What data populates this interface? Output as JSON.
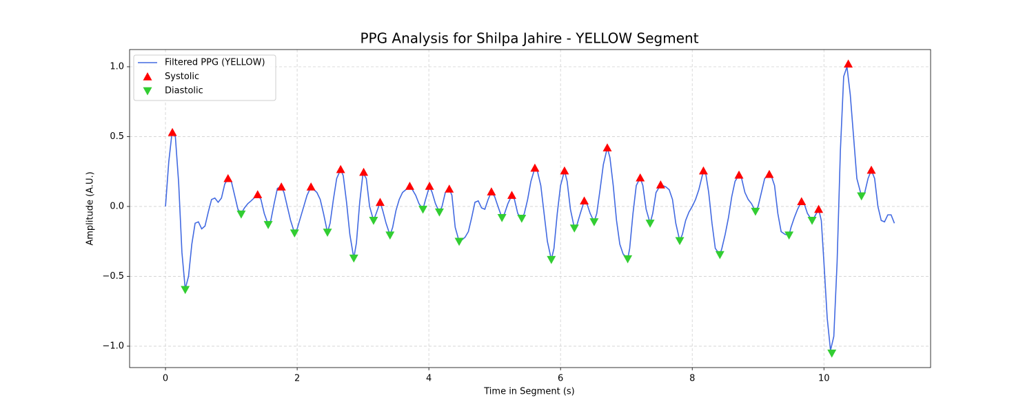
{
  "chart_data": {
    "type": "line",
    "title": "PPG Analysis for Shilpa Jahire - YELLOW Segment",
    "x_label": "Time in Segment (s)",
    "y_label": "Amplitude (A.U.)",
    "xlim": [
      -0.545,
      11.62
    ],
    "ylim": [
      -1.153,
      1.123
    ],
    "xticks": [
      0,
      2,
      4,
      6,
      8,
      10
    ],
    "yticks": [
      {
        "value": -1,
        "label": "−1.0"
      },
      {
        "value": -0.5,
        "label": "−0.5"
      },
      {
        "value": 0,
        "label": "0.0"
      },
      {
        "value": 0.5,
        "label": "0.5"
      },
      {
        "value": 1,
        "label": "1.0"
      }
    ],
    "grid": true,
    "legend": "upper left",
    "series": [
      {
        "name": "Filtered PPG (YELLOW)",
        "color": "#4169e1",
        "kind": "line",
        "x": [
          0,
          0.05,
          0.1,
          0.15,
          0.2,
          0.25,
          0.3,
          0.35,
          0.4,
          0.45,
          0.5,
          0.55,
          0.6,
          0.65,
          0.7,
          0.75,
          0.8,
          0.85,
          0.9,
          0.95,
          1.0,
          1.05,
          1.1,
          1.15,
          1.2,
          1.25,
          1.3,
          1.4,
          1.45,
          1.5,
          1.56,
          1.6,
          1.65,
          1.7,
          1.76,
          1.8,
          1.85,
          1.9,
          1.96,
          2.0,
          2.05,
          2.1,
          2.15,
          2.21,
          2.3,
          2.35,
          2.4,
          2.46,
          2.5,
          2.55,
          2.6,
          2.66,
          2.7,
          2.75,
          2.8,
          2.86,
          2.9,
          2.95,
          3.0,
          3.05,
          3.1,
          3.16,
          3.2,
          3.26,
          3.3,
          3.35,
          3.41,
          3.45,
          3.5,
          3.55,
          3.6,
          3.65,
          3.71,
          3.75,
          3.8,
          3.85,
          3.91,
          3.95,
          4.01,
          4.05,
          4.1,
          4.16,
          4.2,
          4.25,
          4.31,
          4.35,
          4.4,
          4.46,
          4.5,
          4.55,
          4.6,
          4.65,
          4.7,
          4.75,
          4.8,
          4.85,
          4.9,
          4.95,
          5.0,
          5.05,
          5.11,
          5.15,
          5.2,
          5.26,
          5.3,
          5.35,
          5.41,
          5.45,
          5.5,
          5.55,
          5.61,
          5.65,
          5.7,
          5.75,
          5.8,
          5.86,
          5.9,
          5.95,
          6.0,
          6.06,
          6.1,
          6.15,
          6.21,
          6.25,
          6.3,
          6.36,
          6.4,
          6.45,
          6.51,
          6.55,
          6.6,
          6.65,
          6.71,
          6.75,
          6.8,
          6.85,
          6.9,
          6.95,
          7.02,
          7.05,
          7.1,
          7.15,
          7.21,
          7.25,
          7.3,
          7.36,
          7.4,
          7.45,
          7.52,
          7.55,
          7.6,
          7.65,
          7.7,
          7.75,
          7.81,
          7.85,
          7.9,
          7.95,
          8.0,
          8.05,
          8.1,
          8.17,
          8.2,
          8.25,
          8.3,
          8.35,
          8.42,
          8.45,
          8.5,
          8.55,
          8.6,
          8.65,
          8.71,
          8.75,
          8.8,
          8.85,
          8.9,
          8.96,
          9.0,
          9.05,
          9.1,
          9.17,
          9.2,
          9.25,
          9.3,
          9.35,
          9.41,
          9.47,
          9.5,
          9.55,
          9.6,
          9.66,
          9.7,
          9.75,
          9.82,
          9.85,
          9.92,
          9.96,
          10.0,
          10.05,
          10.1,
          10.15,
          10.2,
          10.25,
          10.3,
          10.35,
          10.4,
          10.45,
          10.5,
          10.57,
          10.62,
          10.67,
          10.72,
          10.77,
          10.82,
          10.87,
          10.92,
          10.97,
          11.02,
          11.07
        ],
        "values": [
          0,
          0.32,
          0.53,
          0.5,
          0.17,
          -0.33,
          -0.59,
          -0.5,
          -0.27,
          -0.12,
          -0.11,
          -0.16,
          -0.14,
          -0.04,
          0.05,
          0.06,
          0.03,
          0.06,
          0.16,
          0.2,
          0.18,
          0.08,
          -0.02,
          -0.05,
          -0.01,
          0.02,
          0.04,
          0.085,
          0.05,
          -0.05,
          -0.13,
          -0.1,
          0.02,
          0.13,
          0.14,
          0.1,
          0,
          -0.1,
          -0.19,
          -0.16,
          -0.08,
          0,
          0.08,
          0.14,
          0.1,
          0.05,
          -0.05,
          -0.185,
          -0.12,
          0.05,
          0.2,
          0.265,
          0.22,
          0.03,
          -0.2,
          -0.37,
          -0.26,
          0.03,
          0.24,
          0.2,
          0,
          -0.1,
          -0.05,
          0.03,
          -0.03,
          -0.12,
          -0.205,
          -0.15,
          -0.03,
          0.05,
          0.1,
          0.12,
          0.145,
          0.12,
          0.08,
          0.02,
          -0.02,
          0.05,
          0.145,
          0.1,
          0.02,
          -0.04,
          0,
          0.1,
          0.125,
          0.08,
          -0.15,
          -0.25,
          -0.24,
          -0.22,
          -0.18,
          -0.08,
          0.03,
          0.04,
          -0.01,
          -0.02,
          0.05,
          0.105,
          0.07,
          0,
          -0.08,
          -0.05,
          0.02,
          0.08,
          0.05,
          -0.05,
          -0.085,
          -0.05,
          0.05,
          0.18,
          0.275,
          0.25,
          0.15,
          -0.05,
          -0.25,
          -0.38,
          -0.3,
          -0.05,
          0.15,
          0.255,
          0.18,
          -0.02,
          -0.155,
          -0.13,
          -0.05,
          0.04,
          0.02,
          -0.05,
          -0.11,
          -0.05,
          0.12,
          0.3,
          0.42,
          0.35,
          0.15,
          -0.1,
          -0.27,
          -0.34,
          -0.375,
          -0.3,
          -0.05,
          0.15,
          0.205,
          0.15,
          -0.02,
          -0.12,
          -0.05,
          0.1,
          0.155,
          0.15,
          0.14,
          0.12,
          0.05,
          -0.12,
          -0.245,
          -0.2,
          -0.1,
          -0.04,
          0,
          0.05,
          0.12,
          0.255,
          0.25,
          0.1,
          -0.12,
          -0.3,
          -0.345,
          -0.3,
          -0.2,
          -0.08,
          0.07,
          0.18,
          0.225,
          0.2,
          0.1,
          0.05,
          0.02,
          -0.035,
          0,
          0.1,
          0.2,
          0.23,
          0.22,
          0.15,
          -0.05,
          -0.18,
          -0.2,
          -0.205,
          -0.15,
          -0.08,
          -0.02,
          0.035,
          0.02,
          -0.05,
          -0.1,
          -0.08,
          -0.02,
          -0.1,
          -0.4,
          -0.8,
          -1.03,
          -0.93,
          -0.4,
          0.4,
          0.93,
          1.0,
          0.8,
          0.5,
          0.2,
          0.075,
          0.1,
          0.2,
          0.26,
          0.2,
          0,
          -0.1,
          -0.11,
          -0.06,
          -0.06,
          -0.12
        ]
      },
      {
        "name": "Systolic",
        "color": "#ff0000",
        "kind": "marker-up",
        "x": [
          0.105,
          0.95,
          1.4,
          1.76,
          2.21,
          2.66,
          3.01,
          3.26,
          3.71,
          4.01,
          4.31,
          4.95,
          5.26,
          5.61,
          6.06,
          6.36,
          6.71,
          7.21,
          7.52,
          8.17,
          8.71,
          9.17,
          9.66,
          9.92,
          10.37,
          10.72
        ],
        "values": [
          0.53,
          0.2,
          0.085,
          0.14,
          0.14,
          0.265,
          0.245,
          0.03,
          0.145,
          0.145,
          0.125,
          0.105,
          0.08,
          0.275,
          0.255,
          0.04,
          0.42,
          0.205,
          0.155,
          0.255,
          0.225,
          0.23,
          0.035,
          -0.02,
          1.02,
          0.26
        ]
      },
      {
        "name": "Diastolic",
        "color": "#32cd32",
        "kind": "marker-down",
        "x": [
          0.3,
          1.15,
          1.56,
          1.96,
          2.46,
          2.86,
          3.16,
          3.41,
          3.91,
          4.16,
          4.46,
          5.11,
          5.41,
          5.86,
          6.21,
          6.51,
          7.02,
          7.36,
          7.81,
          8.42,
          8.96,
          9.47,
          9.82,
          10.12,
          10.57
        ],
        "values": [
          -0.595,
          -0.055,
          -0.13,
          -0.19,
          -0.185,
          -0.37,
          -0.1,
          -0.205,
          -0.02,
          -0.04,
          -0.25,
          -0.08,
          -0.085,
          -0.38,
          -0.155,
          -0.11,
          -0.375,
          -0.12,
          -0.245,
          -0.345,
          -0.035,
          -0.205,
          -0.1,
          -1.05,
          0.075
        ]
      }
    ]
  }
}
